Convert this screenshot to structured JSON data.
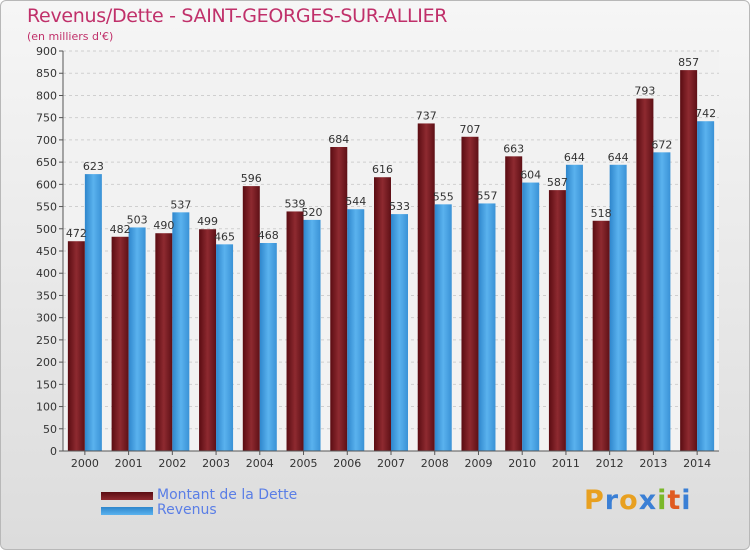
{
  "chart_data": {
    "type": "bar",
    "title": "Revenus/Dette - SAINT-GEORGES-SUR-ALLIER",
    "subtitle": "(en milliers d'€)",
    "categories": [
      "2000",
      "2001",
      "2002",
      "2003",
      "2004",
      "2005",
      "2006",
      "2007",
      "2008",
      "2009",
      "2010",
      "2011",
      "2012",
      "2013",
      "2014"
    ],
    "series": [
      {
        "name": "Montant de la Dette",
        "color": "#7a1c22",
        "values": [
          472,
          482,
          490,
          499,
          596,
          539,
          684,
          616,
          737,
          707,
          663,
          587,
          518,
          793,
          857
        ]
      },
      {
        "name": "Revenus",
        "color": "#4aa3e6",
        "values": [
          623,
          503,
          537,
          465,
          468,
          520,
          544,
          533,
          555,
          557,
          604,
          644,
          644,
          672,
          742
        ]
      }
    ],
    "ylim": [
      0,
      900
    ],
    "yticks": [
      0,
      50,
      100,
      150,
      200,
      250,
      300,
      350,
      400,
      450,
      500,
      550,
      600,
      650,
      700,
      750,
      800,
      850,
      900
    ],
    "grid": true,
    "legend_position": "bottom-left"
  },
  "logo": {
    "letters": [
      "P",
      "r",
      "o",
      "x",
      "i",
      "t",
      "i"
    ],
    "colors": [
      "#e8a020",
      "#3a7fd5",
      "#e8a020",
      "#3a7fd5",
      "#7ab82a",
      "#e05a20",
      "#3a7fd5"
    ]
  }
}
